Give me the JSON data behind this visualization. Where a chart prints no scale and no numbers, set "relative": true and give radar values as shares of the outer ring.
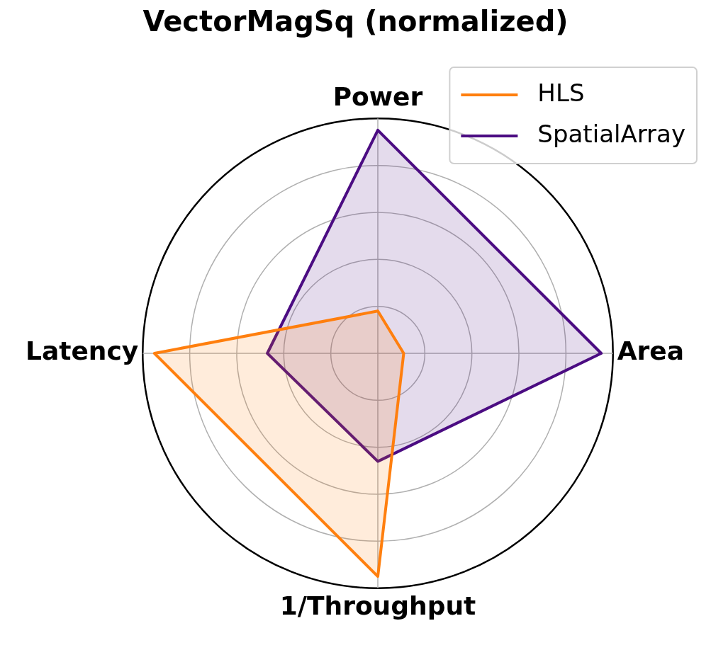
{
  "chart_data": {
    "type": "radar",
    "title": "VectorMagSq (normalized)",
    "relative": true,
    "legend": "top right",
    "grid": true,
    "categories": [
      "Power",
      "Area",
      "1/Throughput",
      "Latency"
    ],
    "series": [
      {
        "name": "HLS",
        "color": "#ff7f0e",
        "values": [
          0.18,
          0.11,
          0.95,
          0.95
        ]
      },
      {
        "name": "SpatialArray",
        "color": "#4b0c82",
        "values": [
          0.95,
          0.95,
          0.46,
          0.47
        ]
      }
    ]
  }
}
